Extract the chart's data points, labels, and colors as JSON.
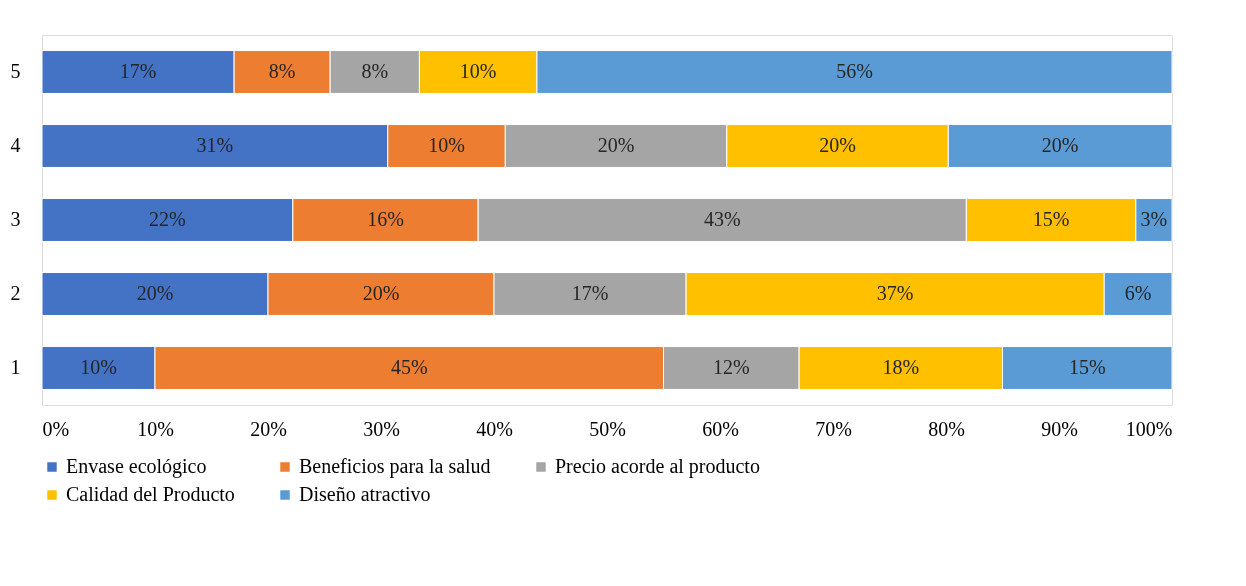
{
  "chart_data": {
    "type": "bar",
    "orientation": "horizontal",
    "stacked": true,
    "categories": [
      "5",
      "4",
      "3",
      "2",
      "1"
    ],
    "series": [
      {
        "name": "Envase ecológico",
        "color": "#4472c4",
        "values": [
          17.0,
          30.6,
          22.2,
          20,
          10
        ],
        "value_labels": [
          "17%",
          "31%",
          "22%",
          "20%",
          "10%"
        ]
      },
      {
        "name": "Beneficios para la salud",
        "color": "#ed7d31",
        "values": [
          8.5,
          10.4,
          16.4,
          20,
          45
        ],
        "value_labels": [
          "8%",
          "10%",
          "16%",
          "20%",
          "45%"
        ]
      },
      {
        "name": "Precio acorde al producto",
        "color": "#a5a5a5",
        "values": [
          7.9,
          19.6,
          43.2,
          17,
          12
        ],
        "value_labels": [
          "8%",
          "20%",
          "43%",
          "17%",
          "12%"
        ]
      },
      {
        "name": "Calidad del Producto",
        "color": "#ffc000",
        "values": [
          10.4,
          19.6,
          15.0,
          37,
          18
        ],
        "value_labels": [
          "10%",
          "20%",
          "15%",
          "37%",
          "18%"
        ]
      },
      {
        "name": "Diseño atractivo",
        "color": "#5b9bd5",
        "values": [
          56.2,
          19.8,
          3.2,
          6,
          15
        ],
        "value_labels": [
          "56%",
          "20%",
          "3%",
          "6%",
          "15%"
        ]
      }
    ],
    "xlim": [
      0,
      100
    ],
    "xticks": [
      {
        "value": 0,
        "label": "0%"
      },
      {
        "value": 10,
        "label": "10%"
      },
      {
        "value": 20,
        "label": "20%"
      },
      {
        "value": 30,
        "label": "30%"
      },
      {
        "value": 40,
        "label": "40%"
      },
      {
        "value": 50,
        "label": "50%"
      },
      {
        "value": 60,
        "label": "60%"
      },
      {
        "value": 70,
        "label": "70%"
      },
      {
        "value": 80,
        "label": "80%"
      },
      {
        "value": 90,
        "label": "90%"
      },
      {
        "value": 100,
        "label": "100%"
      }
    ],
    "grid": false,
    "legend": "bottom"
  }
}
